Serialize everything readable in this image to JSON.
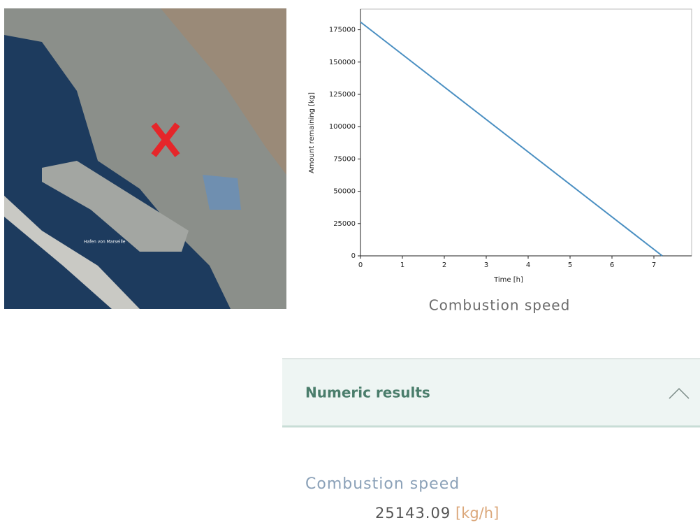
{
  "chart_data": {
    "type": "line",
    "x_label": "Time [h]",
    "y_label": "Amount remaining [kg]",
    "x": [
      0,
      7.2
    ],
    "values": [
      181000,
      0
    ],
    "color": "#4a8fc2",
    "xlim": [
      0,
      7.9
    ],
    "ylim": [
      0,
      191000
    ],
    "xticks": [
      0,
      1,
      2,
      3,
      4,
      5,
      6,
      7
    ],
    "yticks": [
      0,
      25000,
      50000,
      75000,
      100000,
      125000,
      150000,
      175000
    ],
    "caption": "Combustion speed"
  },
  "map": {
    "label": "Hafen von Marseille"
  },
  "panel": {
    "title": "Numeric results"
  },
  "result": {
    "label": "Combustion speed",
    "value": 25143.09,
    "unit": "[kg/h]"
  }
}
